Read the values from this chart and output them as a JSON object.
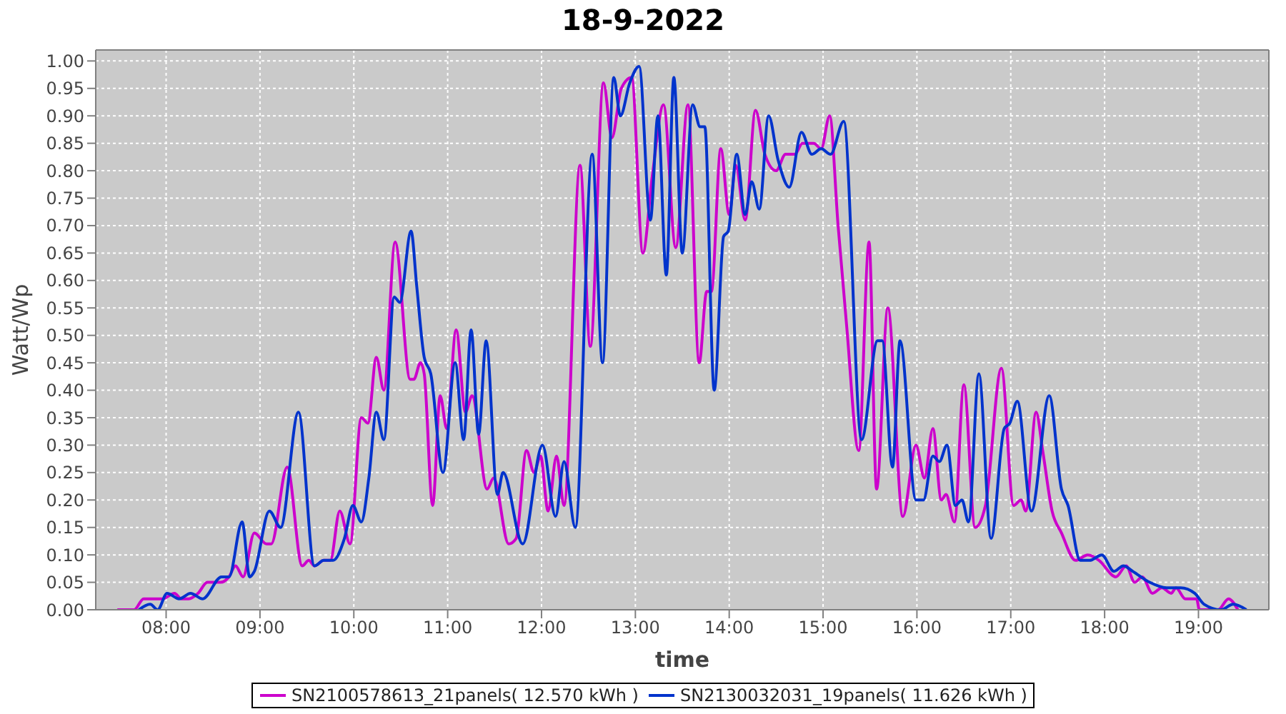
{
  "chart_data": {
    "type": "line",
    "title": "18-9-2022",
    "xlabel": "time",
    "ylabel": "Watt/Wp",
    "xlim": [
      7.25,
      19.75
    ],
    "xticks": [
      {
        "value": 8,
        "label": "08:00"
      },
      {
        "value": 9,
        "label": "09:00"
      },
      {
        "value": 10,
        "label": "10:00"
      },
      {
        "value": 11,
        "label": "11:00"
      },
      {
        "value": 12,
        "label": "12:00"
      },
      {
        "value": 13,
        "label": "13:00"
      },
      {
        "value": 14,
        "label": "14:00"
      },
      {
        "value": 15,
        "label": "15:00"
      },
      {
        "value": 16,
        "label": "16:00"
      },
      {
        "value": 17,
        "label": "17:00"
      },
      {
        "value": 18,
        "label": "18:00"
      },
      {
        "value": 19,
        "label": "19:00"
      }
    ],
    "ylim": [
      0,
      1.02
    ],
    "yticks": [
      {
        "value": 0,
        "label": "0.00"
      },
      0.05,
      {
        "value": 0.1,
        "label": "0.10"
      },
      0.15,
      {
        "value": 0.2,
        "label": "0.20"
      },
      0.25,
      {
        "value": 0.3,
        "label": "0.30"
      },
      0.35,
      {
        "value": 0.4,
        "label": "0.40"
      },
      0.45,
      {
        "value": 0.5,
        "label": "0.50"
      },
      0.55,
      {
        "value": 0.6,
        "label": "0.60"
      },
      0.65,
      {
        "value": 0.7,
        "label": "0.70"
      },
      0.75,
      {
        "value": 0.8,
        "label": "0.80"
      },
      0.85,
      {
        "value": 0.9,
        "label": "0.90"
      },
      0.95,
      {
        "value": 1,
        "label": "1.00"
      }
    ],
    "grid": true,
    "legend": "bottom",
    "series": [
      {
        "name": "SN2100578613_21panels( 12.570 kWh )",
        "color": "#cc00cc",
        "x": [
          7.48,
          7.66,
          7.76,
          7.96,
          8.09,
          8.16,
          8.24,
          8.34,
          8.44,
          8.58,
          8.67,
          8.74,
          8.82,
          8.94,
          9.07,
          9.12,
          9.29,
          9.45,
          9.52,
          9.58,
          9.68,
          9.75,
          9.85,
          9.96,
          10.08,
          10.15,
          10.24,
          10.32,
          10.44,
          10.6,
          10.64,
          10.71,
          10.75,
          10.84,
          10.92,
          10.99,
          11.09,
          11.19,
          11.26,
          11.42,
          11.49,
          11.65,
          11.73,
          11.84,
          11.92,
          11.99,
          12.07,
          12.16,
          12.24,
          12.41,
          12.52,
          12.66,
          12.75,
          12.85,
          12.96,
          13.08,
          13.18,
          13.3,
          13.43,
          13.56,
          13.68,
          13.76,
          13.81,
          13.91,
          14.0,
          14.07,
          14.17,
          14.28,
          14.38,
          14.5,
          14.6,
          14.7,
          14.78,
          14.9,
          14.98,
          15.07,
          15.16,
          15.25,
          15.38,
          15.49,
          15.57,
          15.69,
          15.85,
          15.99,
          16.08,
          16.17,
          16.26,
          16.31,
          16.4,
          16.5,
          16.62,
          16.73,
          16.9,
          17.03,
          17.11,
          17.16,
          17.27,
          17.34,
          17.44,
          17.54,
          17.69,
          17.82,
          17.94,
          18.12,
          18.23,
          18.32,
          18.4,
          18.51,
          18.61,
          18.71,
          18.76,
          18.86,
          18.98,
          19.01,
          19.21,
          19.32,
          19.42
        ],
        "values": [
          0,
          0,
          0.02,
          0.02,
          0.03,
          0.02,
          0.02,
          0.03,
          0.05,
          0.05,
          0.06,
          0.08,
          0.06,
          0.14,
          0.12,
          0.12,
          0.26,
          0.08,
          0.09,
          0.08,
          0.09,
          0.09,
          0.18,
          0.12,
          0.35,
          0.34,
          0.46,
          0.4,
          0.67,
          0.42,
          0.42,
          0.45,
          0.43,
          0.19,
          0.39,
          0.33,
          0.51,
          0.36,
          0.39,
          0.22,
          0.24,
          0.12,
          0.13,
          0.29,
          0.25,
          0.28,
          0.18,
          0.28,
          0.19,
          0.81,
          0.48,
          0.96,
          0.86,
          0.95,
          0.97,
          0.65,
          0.79,
          0.92,
          0.66,
          0.92,
          0.45,
          0.58,
          0.58,
          0.84,
          0.72,
          0.81,
          0.71,
          0.91,
          0.83,
          0.8,
          0.83,
          0.83,
          0.85,
          0.85,
          0.84,
          0.9,
          0.7,
          0.52,
          0.29,
          0.67,
          0.22,
          0.55,
          0.17,
          0.3,
          0.24,
          0.33,
          0.2,
          0.21,
          0.16,
          0.41,
          0.15,
          0.19,
          0.44,
          0.19,
          0.2,
          0.18,
          0.36,
          0.29,
          0.18,
          0.14,
          0.09,
          0.1,
          0.09,
          0.06,
          0.08,
          0.05,
          0.06,
          0.03,
          0.04,
          0.03,
          0.04,
          0.02,
          0.02,
          0,
          0,
          0.02,
          0
        ]
      },
      {
        "name": "SN2130032031_19panels( 11.626 kWh )",
        "color": "#0033cc",
        "x": [
          7.71,
          7.83,
          7.91,
          8.01,
          8.14,
          8.26,
          8.39,
          8.59,
          8.67,
          8.81,
          8.89,
          8.94,
          9.1,
          9.22,
          9.41,
          9.58,
          9.68,
          9.78,
          9.9,
          9.99,
          10.08,
          10.16,
          10.24,
          10.32,
          10.43,
          10.49,
          10.61,
          10.67,
          10.75,
          10.82,
          10.95,
          11.08,
          11.17,
          11.25,
          11.33,
          11.41,
          11.53,
          11.59,
          11.8,
          12.01,
          12.15,
          12.24,
          12.36,
          12.54,
          12.65,
          12.77,
          12.84,
          12.94,
          13.04,
          13.16,
          13.24,
          13.33,
          13.41,
          13.5,
          13.61,
          13.69,
          13.74,
          13.84,
          13.94,
          13.99,
          14.08,
          14.17,
          14.24,
          14.32,
          14.42,
          14.52,
          14.64,
          14.77,
          14.88,
          14.98,
          15.08,
          15.22,
          15.41,
          15.58,
          15.63,
          15.74,
          15.82,
          15.99,
          16.07,
          16.17,
          16.24,
          16.32,
          16.41,
          16.48,
          16.55,
          16.66,
          16.79,
          16.93,
          16.99,
          17.07,
          17.22,
          17.41,
          17.54,
          17.61,
          17.74,
          17.84,
          17.97,
          18.1,
          18.2,
          18.3,
          18.48,
          18.66,
          18.81,
          18.96,
          19.06,
          19.24,
          19.37,
          19.51
        ],
        "values": [
          0,
          0.01,
          0,
          0.03,
          0.02,
          0.03,
          0.02,
          0.06,
          0.06,
          0.16,
          0.06,
          0.07,
          0.18,
          0.15,
          0.36,
          0.08,
          0.09,
          0.09,
          0.13,
          0.19,
          0.16,
          0.24,
          0.36,
          0.31,
          0.57,
          0.56,
          0.69,
          0.59,
          0.46,
          0.43,
          0.25,
          0.45,
          0.31,
          0.51,
          0.32,
          0.49,
          0.21,
          0.25,
          0.12,
          0.3,
          0.17,
          0.27,
          0.15,
          0.83,
          0.45,
          0.97,
          0.9,
          0.96,
          0.99,
          0.71,
          0.9,
          0.61,
          0.97,
          0.65,
          0.92,
          0.88,
          0.88,
          0.4,
          0.68,
          0.69,
          0.83,
          0.72,
          0.78,
          0.73,
          0.9,
          0.82,
          0.77,
          0.87,
          0.83,
          0.84,
          0.83,
          0.89,
          0.31,
          0.49,
          0.49,
          0.26,
          0.49,
          0.2,
          0.2,
          0.28,
          0.27,
          0.3,
          0.19,
          0.2,
          0.16,
          0.43,
          0.13,
          0.33,
          0.34,
          0.38,
          0.18,
          0.39,
          0.22,
          0.19,
          0.09,
          0.09,
          0.1,
          0.07,
          0.08,
          0.07,
          0.05,
          0.04,
          0.04,
          0.03,
          0.01,
          0,
          0.01,
          0
        ]
      }
    ]
  }
}
